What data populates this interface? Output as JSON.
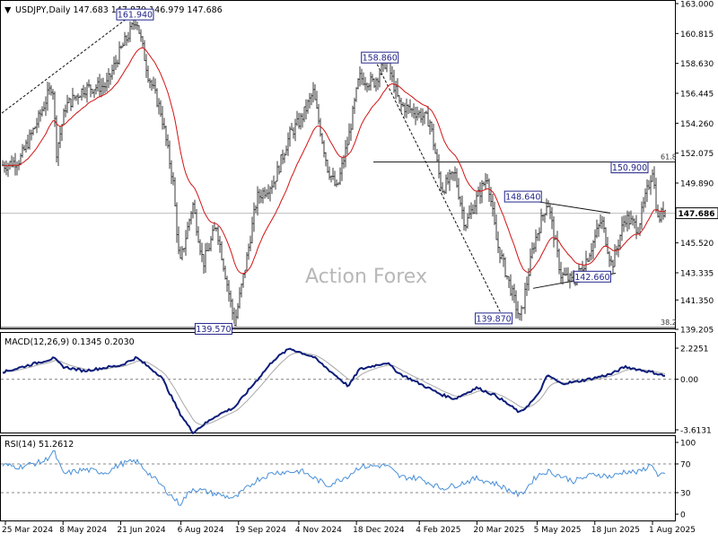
{
  "chart_data": [
    {
      "type": "ohlc",
      "panel": "price",
      "symbol_line": "USDJPY,Daily  147.683 147.879 146.979 147.686",
      "watermark": "Action Forex",
      "y_range": [
        139.205,
        163.0
      ],
      "y_ticks": [
        "163.000",
        "160.815",
        "158.630",
        "156.445",
        "154.260",
        "152.075",
        "149.890",
        "147.686",
        "145.520",
        "143.335",
        "141.350",
        "139.205"
      ],
      "current_price": "147.686",
      "annotations": [
        "161.940",
        "158.860",
        "139.570",
        "139.870",
        "148.640",
        "150.900",
        "142.660"
      ],
      "fib_labels": [
        "61.8",
        "38.2"
      ],
      "sma_color": "#d21414",
      "bar_color": "#3a3a3a",
      "x_labels": [
        "25 Mar 2024",
        "8 May 2024",
        "21 Jun 2024",
        "6 Aug 2024",
        "19 Sep 2024",
        "4 Nov 2024",
        "18 Dec 2024",
        "4 Feb 2025",
        "20 Mar 2025",
        "5 May 2025",
        "18 Jun 2025",
        "1 Aug 2025"
      ],
      "price_path": [
        [
          "25 Mar 2024",
          151.2
        ],
        [
          "5 Apr 2024",
          151.6
        ],
        [
          "19 Apr 2024",
          154.5
        ],
        [
          "30 Apr 2024",
          157.2
        ],
        [
          "3 May 2024",
          152.2
        ],
        [
          "10 May 2024",
          155.5
        ],
        [
          "24 May 2024",
          156.8
        ],
        [
          "10 Jun 2024",
          157.0
        ],
        [
          "21 Jun 2024",
          159.6
        ],
        [
          "28 Jun 2024",
          160.9
        ],
        [
          "3 Jul 2024",
          161.94
        ],
        [
          "12 Jul 2024",
          157.8
        ],
        [
          "22 Jul 2024",
          155.0
        ],
        [
          "31 Jul 2024",
          150.0
        ],
        [
          "5 Aug 2024",
          143.8
        ],
        [
          "15 Aug 2024",
          148.4
        ],
        [
          "23 Aug 2024",
          144.0
        ],
        [
          "2 Sep 2024",
          146.8
        ],
        [
          "16 Sep 2024",
          139.57
        ],
        [
          "26 Sep 2024",
          144.8
        ],
        [
          "3 Oct 2024",
          148.8
        ],
        [
          "16 Oct 2024",
          150.0
        ],
        [
          "28 Oct 2024",
          153.4
        ],
        [
          "6 Nov 2024",
          154.6
        ],
        [
          "15 Nov 2024",
          156.5
        ],
        [
          "26 Nov 2024",
          151.0
        ],
        [
          "3 Dec 2024",
          149.4
        ],
        [
          "12 Dec 2024",
          153.2
        ],
        [
          "20 Dec 2024",
          157.6
        ],
        [
          "31 Dec 2024",
          157.2
        ],
        [
          "10 Jan 2025",
          158.86
        ],
        [
          "20 Jan 2025",
          155.6
        ],
        [
          "3 Feb 2025",
          155.0
        ],
        [
          "12 Feb 2025",
          154.4
        ],
        [
          "21 Feb 2025",
          149.4
        ],
        [
          "3 Mar 2025",
          150.6
        ],
        [
          "11 Mar 2025",
          146.8
        ],
        [
          "20 Mar 2025",
          148.8
        ],
        [
          "28 Mar 2025",
          150.4
        ],
        [
          "4 Apr 2025",
          145.6
        ],
        [
          "22 Apr 2025",
          139.87
        ],
        [
          "2 May 2025",
          145.3
        ],
        [
          "13 May 2025",
          148.64
        ],
        [
          "23 May 2025",
          143.2
        ],
        [
          "2 Jun 2025",
          142.66
        ],
        [
          "13 Jun 2025",
          144.6
        ],
        [
          "23 Jun 2025",
          147.2
        ],
        [
          "1 Jul 2025",
          143.8
        ],
        [
          "11 Jul 2025",
          147.4
        ],
        [
          "21 Jul 2025",
          146.6
        ],
        [
          "1 Aug 2025",
          150.9
        ],
        [
          "5 Aug 2025",
          147.2
        ],
        [
          "12 Aug 2025",
          148.2
        ],
        [
          "18 Aug 2025",
          147.686
        ]
      ]
    },
    {
      "type": "line",
      "panel": "macd",
      "label": "MACD(12,26,9) 0.1345 0.2030",
      "y_range": [
        -3.6131,
        2.2251
      ],
      "y_ticks": [
        "2.2251",
        "0.00",
        "-3.6131"
      ],
      "main_color": "#0b1c7a",
      "signal_color": "#a8a8a8",
      "values": [
        [
          "25 Mar 2024",
          0.55
        ],
        [
          "19 Apr 2024",
          1.2
        ],
        [
          "1 May 2024",
          1.5
        ],
        [
          "8 May 2024",
          0.9
        ],
        [
          "24 May 2024",
          0.6
        ],
        [
          "21 Jun 2024",
          1.0
        ],
        [
          "3 Jul 2024",
          1.55
        ],
        [
          "22 Jul 2024",
          0.2
        ],
        [
          "5 Aug 2024",
          -2.4
        ],
        [
          "15 Aug 2024",
          -3.8
        ],
        [
          "2 Sep 2024",
          -2.6
        ],
        [
          "16 Sep 2024",
          -2.0
        ],
        [
          "30 Sep 2024",
          -0.4
        ],
        [
          "16 Oct 2024",
          1.4
        ],
        [
          "28 Oct 2024",
          2.2
        ],
        [
          "6 Nov 2024",
          1.9
        ],
        [
          "15 Nov 2024",
          1.6
        ],
        [
          "3 Dec 2024",
          0.2
        ],
        [
          "12 Dec 2024",
          -0.5
        ],
        [
          "20 Dec 2024",
          0.7
        ],
        [
          "10 Jan 2025",
          1.2
        ],
        [
          "20 Jan 2025",
          0.4
        ],
        [
          "4 Feb 2025",
          -0.3
        ],
        [
          "21 Feb 2025",
          -1.1
        ],
        [
          "3 Mar 2025",
          -1.4
        ],
        [
          "20 Mar 2025",
          -0.6
        ],
        [
          "4 Apr 2025",
          -1.2
        ],
        [
          "22 Apr 2025",
          -2.4
        ],
        [
          "5 May 2025",
          -1.2
        ],
        [
          "13 May 2025",
          0.3
        ],
        [
          "23 May 2025",
          -0.3
        ],
        [
          "2 Jun 2025",
          -0.2
        ],
        [
          "18 Jun 2025",
          0.1
        ],
        [
          "1 Jul 2025",
          0.4
        ],
        [
          "11 Jul 2025",
          0.9
        ],
        [
          "21 Jul 2025",
          0.7
        ],
        [
          "1 Aug 2025",
          0.5
        ],
        [
          "12 Aug 2025",
          0.2
        ],
        [
          "18 Aug 2025",
          0.1345
        ]
      ]
    },
    {
      "type": "line",
      "panel": "rsi",
      "label": "RSI(14) 51.2612",
      "y_range": [
        0,
        100
      ],
      "y_ticks": [
        100,
        70,
        30,
        0
      ],
      "levels": [
        70,
        30
      ],
      "color": "#4a90d9",
      "values": [
        [
          "25 Mar 2024",
          68
        ],
        [
          "5 Apr 2024",
          66
        ],
        [
          "24 Apr 2024",
          74
        ],
        [
          "1 May 2024",
          88
        ],
        [
          "8 May 2024",
          56
        ],
        [
          "24 May 2024",
          62
        ],
        [
          "10 Jun 2024",
          58
        ],
        [
          "21 Jun 2024",
          70
        ],
        [
          "3 Jul 2024",
          74
        ],
        [
          "22 Jul 2024",
          40
        ],
        [
          "5 Aug 2024",
          14
        ],
        [
          "15 Aug 2024",
          36
        ],
        [
          "2 Sep 2024",
          28
        ],
        [
          "16 Sep 2024",
          22
        ],
        [
          "3 Oct 2024",
          48
        ],
        [
          "16 Oct 2024",
          58
        ],
        [
          "6 Nov 2024",
          60
        ],
        [
          "26 Nov 2024",
          40
        ],
        [
          "12 Dec 2024",
          54
        ],
        [
          "20 Dec 2024",
          66
        ],
        [
          "10 Jan 2025",
          68
        ],
        [
          "20 Jan 2025",
          52
        ],
        [
          "4 Feb 2025",
          50
        ],
        [
          "21 Feb 2025",
          36
        ],
        [
          "3 Mar 2025",
          40
        ],
        [
          "20 Mar 2025",
          50
        ],
        [
          "4 Apr 2025",
          42
        ],
        [
          "22 Apr 2025",
          26
        ],
        [
          "5 May 2025",
          54
        ],
        [
          "13 May 2025",
          60
        ],
        [
          "2 Jun 2025",
          46
        ],
        [
          "18 Jun 2025",
          56
        ],
        [
          "1 Jul 2025",
          52
        ],
        [
          "11 Jul 2025",
          60
        ],
        [
          "21 Jul 2025",
          58
        ],
        [
          "1 Aug 2025",
          70
        ],
        [
          "5 Aug 2025",
          52
        ],
        [
          "12 Aug 2025",
          56
        ],
        [
          "18 Aug 2025",
          51.26
        ]
      ]
    }
  ]
}
